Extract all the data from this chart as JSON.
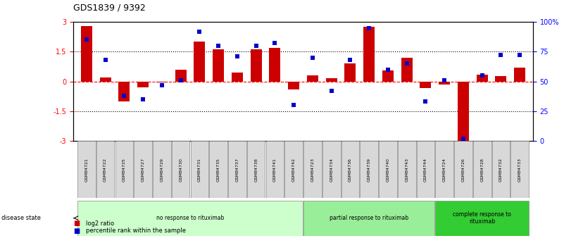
{
  "title": "GDS1839 / 9392",
  "samples": [
    "GSM84721",
    "GSM84722",
    "GSM84725",
    "GSM84727",
    "GSM84729",
    "GSM84730",
    "GSM84731",
    "GSM84735",
    "GSM84737",
    "GSM84738",
    "GSM84741",
    "GSM84742",
    "GSM84723",
    "GSM84734",
    "GSM84736",
    "GSM84739",
    "GSM84740",
    "GSM84743",
    "GSM84744",
    "GSM84724",
    "GSM84726",
    "GSM84728",
    "GSM84732",
    "GSM84733"
  ],
  "log2_ratio": [
    2.8,
    0.2,
    -1.0,
    -0.3,
    -0.05,
    0.6,
    2.0,
    1.6,
    0.45,
    1.6,
    1.7,
    -0.4,
    0.3,
    0.15,
    0.9,
    2.75,
    0.55,
    1.2,
    -0.35,
    -0.15,
    -3.0,
    0.35,
    0.28,
    0.7
  ],
  "percentile": [
    85,
    68,
    38,
    35,
    47,
    51,
    92,
    80,
    71,
    80,
    82,
    30,
    70,
    42,
    68,
    95,
    60,
    65,
    33,
    51,
    2,
    55,
    72,
    72
  ],
  "groups": [
    {
      "label": "no response to rituximab",
      "start": 0,
      "end": 12,
      "color": "#ccffcc"
    },
    {
      "label": "partial response to rituximab",
      "start": 12,
      "end": 19,
      "color": "#99ee99"
    },
    {
      "label": "complete response to\nrituximab",
      "start": 19,
      "end": 24,
      "color": "#33cc33"
    }
  ],
  "ylim": [
    -3,
    3
  ],
  "yticks": [
    -3,
    -1.5,
    0,
    1.5,
    3
  ],
  "yticklabels": [
    "-3",
    "-1.5",
    "0",
    "1.5",
    "3"
  ],
  "right_yticks": [
    0,
    25,
    50,
    75,
    100
  ],
  "right_yticklabels": [
    "0",
    "25",
    "50",
    "75",
    "100%"
  ],
  "bar_color": "#cc0000",
  "dot_color": "#0000cc",
  "bg_color": "#ffffff",
  "legend_items": [
    {
      "label": "log2 ratio",
      "color": "#cc0000"
    },
    {
      "label": "percentile rank within the sample",
      "color": "#0000cc"
    }
  ]
}
